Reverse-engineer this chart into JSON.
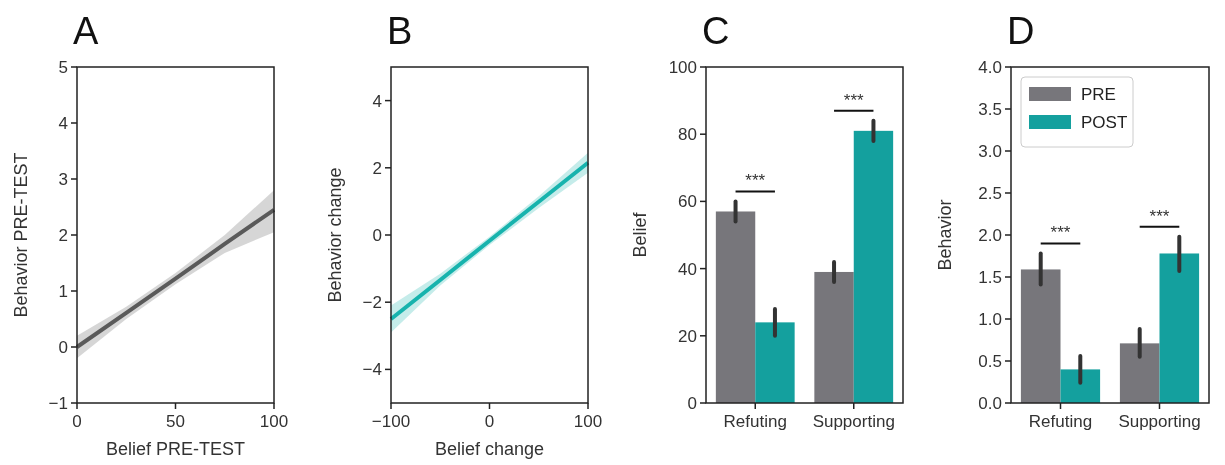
{
  "chart_data": [
    {
      "type": "line",
      "title": "A",
      "xlabel": "Belief PRE-TEST",
      "ylabel": "Behavior PRE-TEST",
      "xlim": [
        0,
        100
      ],
      "xticks": [
        0,
        50,
        100
      ],
      "ylim": [
        -1,
        5
      ],
      "yticks": [
        {
          "value": -1,
          "label": "−1"
        },
        0,
        1,
        2,
        3,
        4,
        5
      ],
      "grid": false,
      "legend": false,
      "series": [
        {
          "color": "#5a5a5a",
          "x": [
            0,
            25,
            50,
            75,
            100
          ],
          "values": [
            0,
            0.61,
            1.22,
            1.84,
            2.45
          ],
          "lower": [
            -0.2,
            0.5,
            1.12,
            1.68,
            2.05
          ],
          "upper": [
            0.2,
            0.72,
            1.32,
            2.0,
            2.8
          ]
        }
      ]
    },
    {
      "type": "line",
      "title": "B",
      "xlabel": "Belief change",
      "ylabel": "Behavior change",
      "xlim": [
        -100,
        100
      ],
      "xticks": [
        {
          "value": -100,
          "label": "−100"
        },
        0,
        100
      ],
      "ylim": [
        -5,
        5
      ],
      "yticks": [
        {
          "value": -4,
          "label": "−4"
        },
        {
          "value": -2,
          "label": "−2"
        },
        0,
        2,
        4
      ],
      "grid": false,
      "legend": false,
      "series": [
        {
          "color": "#17b3ad",
          "x": [
            -100,
            -50,
            0,
            50,
            100
          ],
          "values": [
            -2.5,
            -1.34,
            -0.17,
            0.99,
            2.15
          ],
          "lower": [
            -2.9,
            -1.5,
            -0.3,
            0.8,
            1.85
          ],
          "upper": [
            -2.1,
            -1.15,
            -0.05,
            1.15,
            2.45
          ]
        }
      ]
    },
    {
      "type": "bar",
      "title": "C",
      "ylabel": "Belief",
      "categories": [
        "Refuting",
        "Supporting"
      ],
      "ylim": [
        0,
        100
      ],
      "yticks": [
        0,
        20,
        40,
        60,
        80,
        100
      ],
      "grid": false,
      "legend": false,
      "series": [
        {
          "color": "#77767b",
          "values": [
            57,
            39
          ],
          "errors": [
            [
              54,
              60
            ],
            [
              36,
              42
            ]
          ]
        },
        {
          "color": "#14a09e",
          "values": [
            24,
            81
          ],
          "errors": [
            [
              20,
              28
            ],
            [
              78,
              84
            ]
          ]
        }
      ],
      "annotations": [
        "***",
        "***"
      ]
    },
    {
      "type": "bar",
      "title": "D",
      "ylabel": "Behavior",
      "categories": [
        "Refuting",
        "Supporting"
      ],
      "ylim": [
        0,
        4
      ],
      "yticks": [
        {
          "value": 0,
          "label": "0.0"
        },
        {
          "value": 0.5,
          "label": "0.5"
        },
        {
          "value": 1,
          "label": "1.0"
        },
        {
          "value": 1.5,
          "label": "1.5"
        },
        {
          "value": 2,
          "label": "2.0"
        },
        {
          "value": 2.5,
          "label": "2.5"
        },
        {
          "value": 3,
          "label": "3.0"
        },
        {
          "value": 3.5,
          "label": "3.5"
        },
        {
          "value": 4,
          "label": "4.0"
        }
      ],
      "grid": false,
      "legend": "top left",
      "series": [
        {
          "name": "PRE",
          "color": "#77767b",
          "values": [
            1.59,
            0.71
          ],
          "errors": [
            [
              1.41,
              1.78
            ],
            [
              0.55,
              0.88
            ]
          ]
        },
        {
          "name": "POST",
          "color": "#14a09e",
          "values": [
            0.4,
            1.78
          ],
          "errors": [
            [
              0.24,
              0.56
            ],
            [
              1.57,
              1.98
            ]
          ]
        }
      ],
      "annotations": [
        "***",
        "***"
      ]
    }
  ]
}
